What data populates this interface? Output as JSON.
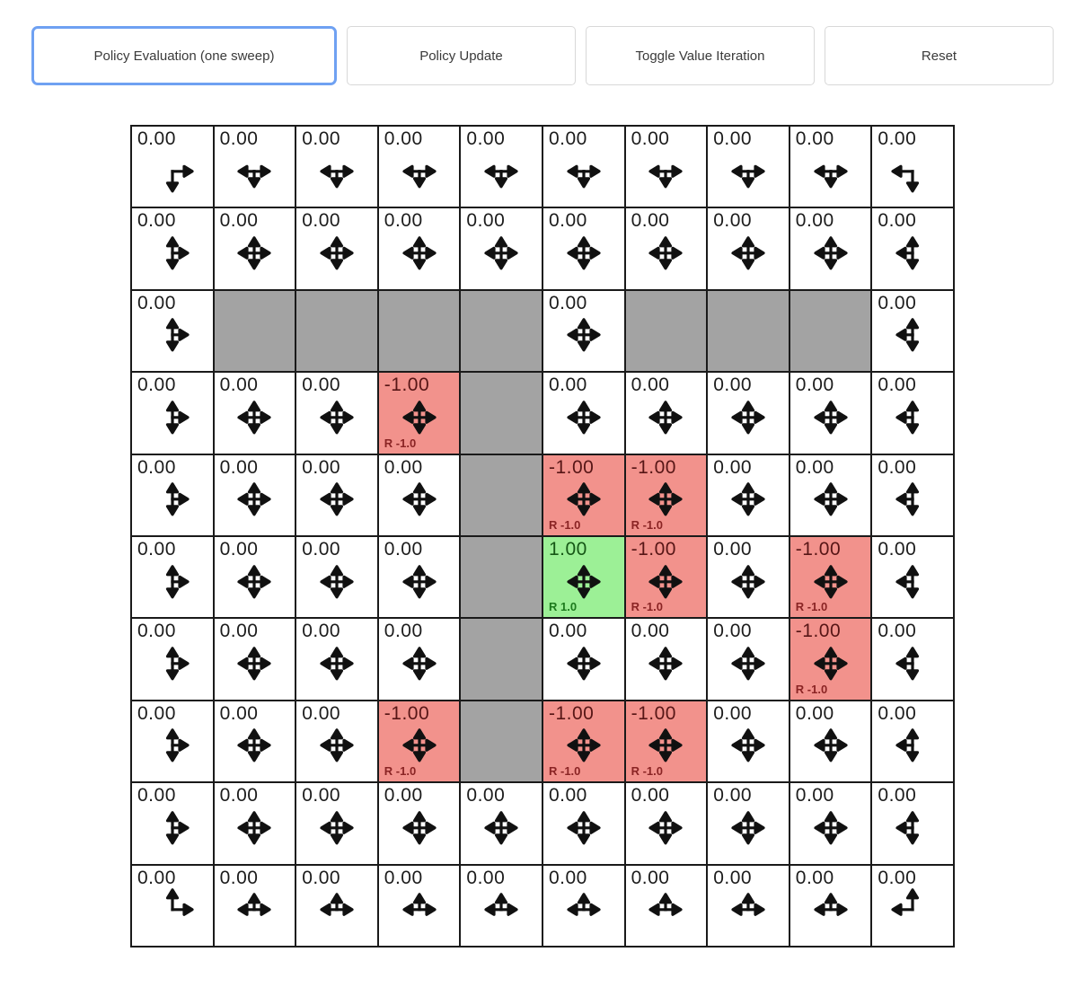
{
  "toolbar": {
    "buttons": [
      {
        "label": "Policy Evaluation (one sweep)",
        "focused": true
      },
      {
        "label": "Policy Update",
        "focused": false
      },
      {
        "label": "Toggle Value Iteration",
        "focused": false
      },
      {
        "label": "Reset",
        "focused": false
      }
    ]
  },
  "colors": {
    "wall": "#a3a3a3",
    "negative_cell": "#f2928c",
    "positive_cell": "#9cf096",
    "focus_ring": "#6fa1f2",
    "grid_border": "#1a1a1a",
    "arrow": "#111111"
  },
  "grid": {
    "rows": 10,
    "cols": 10,
    "cells": [
      [
        {
          "value": "0.00",
          "type": "open",
          "dirs": [
            "down",
            "right"
          ]
        },
        {
          "value": "0.00",
          "type": "open",
          "dirs": [
            "left",
            "down",
            "right"
          ]
        },
        {
          "value": "0.00",
          "type": "open",
          "dirs": [
            "left",
            "down",
            "right"
          ]
        },
        {
          "value": "0.00",
          "type": "open",
          "dirs": [
            "left",
            "down",
            "right"
          ]
        },
        {
          "value": "0.00",
          "type": "open",
          "dirs": [
            "left",
            "down",
            "right"
          ]
        },
        {
          "value": "0.00",
          "type": "open",
          "dirs": [
            "left",
            "down",
            "right"
          ]
        },
        {
          "value": "0.00",
          "type": "open",
          "dirs": [
            "left",
            "down",
            "right"
          ]
        },
        {
          "value": "0.00",
          "type": "open",
          "dirs": [
            "left",
            "down",
            "right"
          ]
        },
        {
          "value": "0.00",
          "type": "open",
          "dirs": [
            "left",
            "down",
            "right"
          ]
        },
        {
          "value": "0.00",
          "type": "open",
          "dirs": [
            "left",
            "down"
          ]
        }
      ],
      [
        {
          "value": "0.00",
          "type": "open",
          "dirs": [
            "up",
            "down",
            "right"
          ]
        },
        {
          "value": "0.00",
          "type": "open",
          "dirs": [
            "up",
            "down",
            "left",
            "right"
          ]
        },
        {
          "value": "0.00",
          "type": "open",
          "dirs": [
            "up",
            "down",
            "left",
            "right"
          ]
        },
        {
          "value": "0.00",
          "type": "open",
          "dirs": [
            "up",
            "down",
            "left",
            "right"
          ]
        },
        {
          "value": "0.00",
          "type": "open",
          "dirs": [
            "up",
            "down",
            "left",
            "right"
          ]
        },
        {
          "value": "0.00",
          "type": "open",
          "dirs": [
            "up",
            "down",
            "left",
            "right"
          ]
        },
        {
          "value": "0.00",
          "type": "open",
          "dirs": [
            "up",
            "down",
            "left",
            "right"
          ]
        },
        {
          "value": "0.00",
          "type": "open",
          "dirs": [
            "up",
            "down",
            "left",
            "right"
          ]
        },
        {
          "value": "0.00",
          "type": "open",
          "dirs": [
            "up",
            "down",
            "left",
            "right"
          ]
        },
        {
          "value": "0.00",
          "type": "open",
          "dirs": [
            "up",
            "down",
            "left"
          ]
        }
      ],
      [
        {
          "value": "0.00",
          "type": "open",
          "dirs": [
            "up",
            "down",
            "right"
          ]
        },
        {
          "type": "wall"
        },
        {
          "type": "wall"
        },
        {
          "type": "wall"
        },
        {
          "type": "wall"
        },
        {
          "value": "0.00",
          "type": "open",
          "dirs": [
            "up",
            "down",
            "left",
            "right"
          ]
        },
        {
          "type": "wall"
        },
        {
          "type": "wall"
        },
        {
          "type": "wall"
        },
        {
          "value": "0.00",
          "type": "open",
          "dirs": [
            "up",
            "down",
            "left"
          ]
        }
      ],
      [
        {
          "value": "0.00",
          "type": "open",
          "dirs": [
            "up",
            "down",
            "right"
          ]
        },
        {
          "value": "0.00",
          "type": "open",
          "dirs": [
            "up",
            "down",
            "left",
            "right"
          ]
        },
        {
          "value": "0.00",
          "type": "open",
          "dirs": [
            "up",
            "down",
            "left",
            "right"
          ]
        },
        {
          "value": "-1.00",
          "type": "neg",
          "reward": "R -1.0",
          "dirs": [
            "up",
            "down",
            "left",
            "right"
          ]
        },
        {
          "type": "wall"
        },
        {
          "value": "0.00",
          "type": "open",
          "dirs": [
            "up",
            "down",
            "left",
            "right"
          ]
        },
        {
          "value": "0.00",
          "type": "open",
          "dirs": [
            "up",
            "down",
            "left",
            "right"
          ]
        },
        {
          "value": "0.00",
          "type": "open",
          "dirs": [
            "up",
            "down",
            "left",
            "right"
          ]
        },
        {
          "value": "0.00",
          "type": "open",
          "dirs": [
            "up",
            "down",
            "left",
            "right"
          ]
        },
        {
          "value": "0.00",
          "type": "open",
          "dirs": [
            "up",
            "down",
            "left"
          ]
        }
      ],
      [
        {
          "value": "0.00",
          "type": "open",
          "dirs": [
            "up",
            "down",
            "right"
          ]
        },
        {
          "value": "0.00",
          "type": "open",
          "dirs": [
            "up",
            "down",
            "left",
            "right"
          ]
        },
        {
          "value": "0.00",
          "type": "open",
          "dirs": [
            "up",
            "down",
            "left",
            "right"
          ]
        },
        {
          "value": "0.00",
          "type": "open",
          "dirs": [
            "up",
            "down",
            "left",
            "right"
          ]
        },
        {
          "type": "wall"
        },
        {
          "value": "-1.00",
          "type": "neg",
          "reward": "R -1.0",
          "dirs": [
            "up",
            "down",
            "left",
            "right"
          ]
        },
        {
          "value": "-1.00",
          "type": "neg",
          "reward": "R -1.0",
          "dirs": [
            "up",
            "down",
            "left",
            "right"
          ]
        },
        {
          "value": "0.00",
          "type": "open",
          "dirs": [
            "up",
            "down",
            "left",
            "right"
          ]
        },
        {
          "value": "0.00",
          "type": "open",
          "dirs": [
            "up",
            "down",
            "left",
            "right"
          ]
        },
        {
          "value": "0.00",
          "type": "open",
          "dirs": [
            "up",
            "down",
            "left"
          ]
        }
      ],
      [
        {
          "value": "0.00",
          "type": "open",
          "dirs": [
            "up",
            "down",
            "right"
          ]
        },
        {
          "value": "0.00",
          "type": "open",
          "dirs": [
            "up",
            "down",
            "left",
            "right"
          ]
        },
        {
          "value": "0.00",
          "type": "open",
          "dirs": [
            "up",
            "down",
            "left",
            "right"
          ]
        },
        {
          "value": "0.00",
          "type": "open",
          "dirs": [
            "up",
            "down",
            "left",
            "right"
          ]
        },
        {
          "type": "wall"
        },
        {
          "value": "1.00",
          "type": "pos",
          "reward": "R 1.0",
          "dirs": [
            "up",
            "down",
            "left",
            "right"
          ]
        },
        {
          "value": "-1.00",
          "type": "neg",
          "reward": "R -1.0",
          "dirs": [
            "up",
            "down",
            "left",
            "right"
          ]
        },
        {
          "value": "0.00",
          "type": "open",
          "dirs": [
            "up",
            "down",
            "left",
            "right"
          ]
        },
        {
          "value": "-1.00",
          "type": "neg",
          "reward": "R -1.0",
          "dirs": [
            "up",
            "down",
            "left",
            "right"
          ]
        },
        {
          "value": "0.00",
          "type": "open",
          "dirs": [
            "up",
            "down",
            "left"
          ]
        }
      ],
      [
        {
          "value": "0.00",
          "type": "open",
          "dirs": [
            "up",
            "down",
            "right"
          ]
        },
        {
          "value": "0.00",
          "type": "open",
          "dirs": [
            "up",
            "down",
            "left",
            "right"
          ]
        },
        {
          "value": "0.00",
          "type": "open",
          "dirs": [
            "up",
            "down",
            "left",
            "right"
          ]
        },
        {
          "value": "0.00",
          "type": "open",
          "dirs": [
            "up",
            "down",
            "left",
            "right"
          ]
        },
        {
          "type": "wall"
        },
        {
          "value": "0.00",
          "type": "open",
          "dirs": [
            "up",
            "down",
            "left",
            "right"
          ]
        },
        {
          "value": "0.00",
          "type": "open",
          "dirs": [
            "up",
            "down",
            "left",
            "right"
          ]
        },
        {
          "value": "0.00",
          "type": "open",
          "dirs": [
            "up",
            "down",
            "left",
            "right"
          ]
        },
        {
          "value": "-1.00",
          "type": "neg",
          "reward": "R -1.0",
          "dirs": [
            "up",
            "down",
            "left",
            "right"
          ]
        },
        {
          "value": "0.00",
          "type": "open",
          "dirs": [
            "up",
            "down",
            "left"
          ]
        }
      ],
      [
        {
          "value": "0.00",
          "type": "open",
          "dirs": [
            "up",
            "down",
            "right"
          ]
        },
        {
          "value": "0.00",
          "type": "open",
          "dirs": [
            "up",
            "down",
            "left",
            "right"
          ]
        },
        {
          "value": "0.00",
          "type": "open",
          "dirs": [
            "up",
            "down",
            "left",
            "right"
          ]
        },
        {
          "value": "-1.00",
          "type": "neg",
          "reward": "R -1.0",
          "dirs": [
            "up",
            "down",
            "left",
            "right"
          ]
        },
        {
          "type": "wall"
        },
        {
          "value": "-1.00",
          "type": "neg",
          "reward": "R -1.0",
          "dirs": [
            "up",
            "down",
            "left",
            "right"
          ]
        },
        {
          "value": "-1.00",
          "type": "neg",
          "reward": "R -1.0",
          "dirs": [
            "up",
            "down",
            "left",
            "right"
          ]
        },
        {
          "value": "0.00",
          "type": "open",
          "dirs": [
            "up",
            "down",
            "left",
            "right"
          ]
        },
        {
          "value": "0.00",
          "type": "open",
          "dirs": [
            "up",
            "down",
            "left",
            "right"
          ]
        },
        {
          "value": "0.00",
          "type": "open",
          "dirs": [
            "up",
            "down",
            "left"
          ]
        }
      ],
      [
        {
          "value": "0.00",
          "type": "open",
          "dirs": [
            "up",
            "down",
            "right"
          ]
        },
        {
          "value": "0.00",
          "type": "open",
          "dirs": [
            "up",
            "down",
            "left",
            "right"
          ]
        },
        {
          "value": "0.00",
          "type": "open",
          "dirs": [
            "up",
            "down",
            "left",
            "right"
          ]
        },
        {
          "value": "0.00",
          "type": "open",
          "dirs": [
            "up",
            "down",
            "left",
            "right"
          ]
        },
        {
          "value": "0.00",
          "type": "open",
          "dirs": [
            "up",
            "down",
            "left",
            "right"
          ]
        },
        {
          "value": "0.00",
          "type": "open",
          "dirs": [
            "up",
            "down",
            "left",
            "right"
          ]
        },
        {
          "value": "0.00",
          "type": "open",
          "dirs": [
            "up",
            "down",
            "left",
            "right"
          ]
        },
        {
          "value": "0.00",
          "type": "open",
          "dirs": [
            "up",
            "down",
            "left",
            "right"
          ]
        },
        {
          "value": "0.00",
          "type": "open",
          "dirs": [
            "up",
            "down",
            "left",
            "right"
          ]
        },
        {
          "value": "0.00",
          "type": "open",
          "dirs": [
            "up",
            "down",
            "left"
          ]
        }
      ],
      [
        {
          "value": "0.00",
          "type": "open",
          "dirs": [
            "up",
            "right"
          ]
        },
        {
          "value": "0.00",
          "type": "open",
          "dirs": [
            "up",
            "left",
            "right"
          ]
        },
        {
          "value": "0.00",
          "type": "open",
          "dirs": [
            "up",
            "left",
            "right"
          ]
        },
        {
          "value": "0.00",
          "type": "open",
          "dirs": [
            "up",
            "left",
            "right"
          ]
        },
        {
          "value": "0.00",
          "type": "open",
          "dirs": [
            "up",
            "left",
            "right"
          ]
        },
        {
          "value": "0.00",
          "type": "open",
          "dirs": [
            "up",
            "left",
            "right"
          ]
        },
        {
          "value": "0.00",
          "type": "open",
          "dirs": [
            "up",
            "left",
            "right"
          ]
        },
        {
          "value": "0.00",
          "type": "open",
          "dirs": [
            "up",
            "left",
            "right"
          ]
        },
        {
          "value": "0.00",
          "type": "open",
          "dirs": [
            "up",
            "left",
            "right"
          ]
        },
        {
          "value": "0.00",
          "type": "open",
          "dirs": [
            "up",
            "left"
          ]
        }
      ]
    ]
  }
}
